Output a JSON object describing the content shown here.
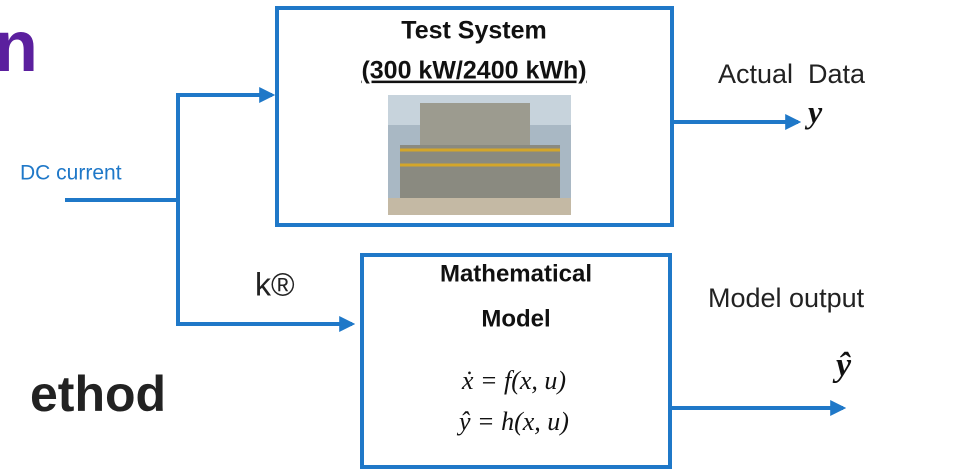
{
  "fragments": {
    "top_left": "n",
    "middle_left": "k®",
    "bottom_left": "ethod"
  },
  "input_label": "DC current",
  "test_system": {
    "title": "Test System",
    "subtitle": "(300 kW/2400 kWh)"
  },
  "model": {
    "title_line1": "Mathematical",
    "title_line2": "Model",
    "equation1": "ẋ = f(x, u)",
    "equation2": "ŷ = h(x, u)"
  },
  "outputs": {
    "actual_label": "Actual  Data",
    "actual_symbol": "y",
    "model_label": "Model output",
    "model_symbol": "ŷ"
  }
}
